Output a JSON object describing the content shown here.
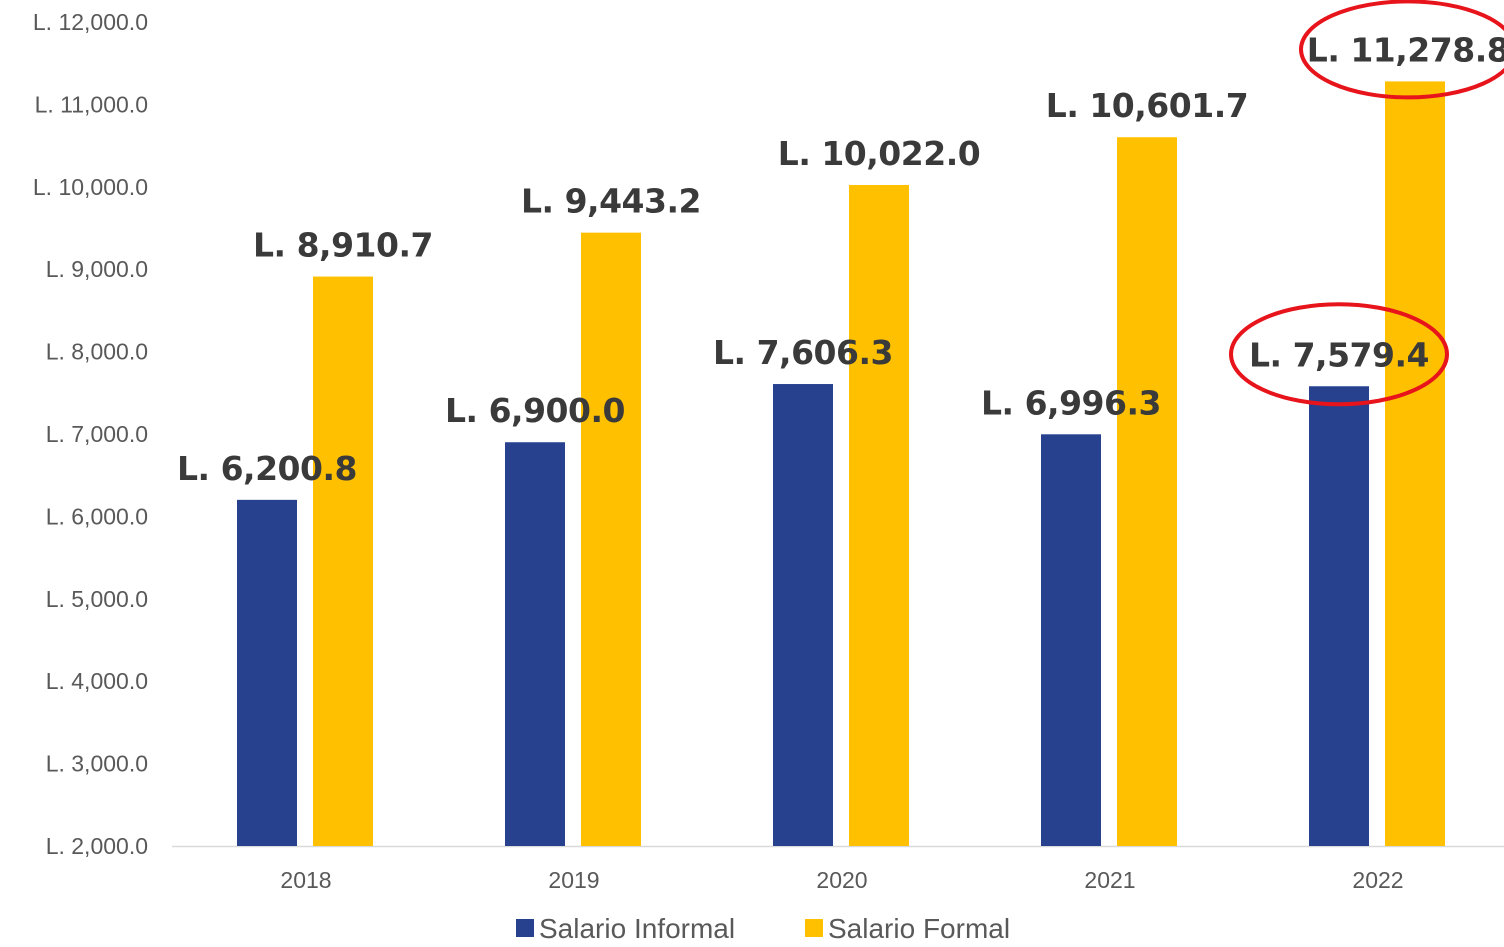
{
  "chart_data": {
    "type": "bar",
    "categories": [
      "2018",
      "2019",
      "2020",
      "2021",
      "2022"
    ],
    "series": [
      {
        "name": "Salario Informal",
        "color": "#27418f",
        "values": [
          6200.8,
          6900.0,
          7606.3,
          6996.3,
          7579.4
        ],
        "labels": [
          "L. 6,200.8",
          "L. 6,900.0",
          "L. 7,606.3",
          "L. 6,996.3",
          "L. 7,579.4"
        ]
      },
      {
        "name": "Salario Formal",
        "color": "#ffc000",
        "values": [
          8910.7,
          9443.2,
          10022.0,
          10601.7,
          11278.8
        ],
        "labels": [
          "L. 8,910.7",
          "L. 9,443.2",
          "L. 10,022.0",
          "L. 10,601.7",
          "L. 11,278.8"
        ]
      }
    ],
    "yticks": [
      "L. 2,000.0",
      "L. 3,000.0",
      "L. 4,000.0",
      "L. 5,000.0",
      "L. 6,000.0",
      "L. 7,000.0",
      "L. 8,000.0",
      "L. 9,000.0",
      "L. 10,000.0",
      "L. 11,000.0",
      "L. 12,000.0"
    ],
    "ylim": [
      2000,
      12000
    ],
    "title": "",
    "xlabel": "",
    "ylabel": "",
    "grid": false,
    "legend_position": "bottom",
    "highlight_color": "#e8141b",
    "highlights": [
      {
        "series": 0,
        "category": 4
      },
      {
        "series": 1,
        "category": 4
      }
    ]
  }
}
